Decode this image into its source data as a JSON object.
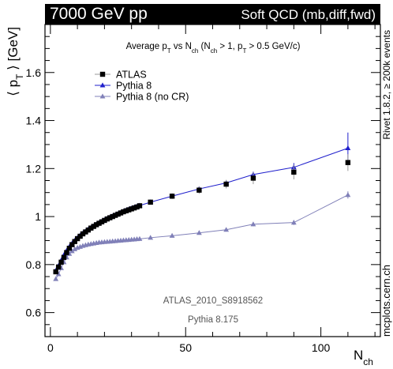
{
  "header": {
    "left_title": "7000 GeV pp",
    "right_title": "Soft QCD (mb,diff,fwd)"
  },
  "side": {
    "rivet_label": "Rivet 1.8.2,  ≥ 200k events",
    "site_label": "mcplots.cern.ch"
  },
  "annotations": {
    "analysis_id": "ATLAS_2010_S8918562",
    "generator": "Pythia 8.175"
  },
  "chart_data": {
    "type": "scatter",
    "title": "Average p_T vs N_ch (N_ch > 1, p_T > 0.5 GeV/c)",
    "xlabel": "N_ch",
    "ylabel": "⟨ p_T ⟩ [GeV]",
    "xlim": [
      -2,
      122
    ],
    "ylim": [
      0.5,
      1.8
    ],
    "x_ticks": [
      0,
      50,
      100
    ],
    "y_ticks": [
      0.6,
      0.8,
      1.0,
      1.2,
      1.4,
      1.6
    ],
    "y_tick_labels": [
      "0.6",
      "0.8",
      "1",
      "1.2",
      "1.4",
      "1.6"
    ],
    "grid": false,
    "legend_position": "top-left",
    "series": [
      {
        "name": "ATLAS",
        "color": "#000000",
        "marker": "square",
        "x": [
          2,
          3,
          4,
          5,
          6,
          7,
          8,
          9,
          10,
          11,
          12,
          13,
          14,
          15,
          16,
          17,
          18,
          19,
          20,
          21,
          22,
          23,
          24,
          25,
          26,
          27,
          28,
          29,
          30,
          31,
          32,
          33,
          37,
          45,
          55,
          65,
          75,
          90,
          110
        ],
        "y": [
          0.77,
          0.79,
          0.81,
          0.83,
          0.85,
          0.868,
          0.883,
          0.896,
          0.908,
          0.918,
          0.928,
          0.936,
          0.944,
          0.952,
          0.959,
          0.966,
          0.972,
          0.978,
          0.984,
          0.99,
          0.995,
          1.0,
          1.005,
          1.01,
          1.015,
          1.02,
          1.024,
          1.028,
          1.032,
          1.036,
          1.04,
          1.045,
          1.06,
          1.085,
          1.11,
          1.135,
          1.16,
          1.185,
          1.225
        ],
        "yerr": [
          0.004,
          0.004,
          0.004,
          0.004,
          0.004,
          0.004,
          0.004,
          0.004,
          0.004,
          0.004,
          0.004,
          0.004,
          0.004,
          0.004,
          0.004,
          0.004,
          0.004,
          0.004,
          0.004,
          0.004,
          0.004,
          0.004,
          0.005,
          0.005,
          0.005,
          0.005,
          0.005,
          0.005,
          0.005,
          0.006,
          0.006,
          0.006,
          0.008,
          0.012,
          0.015,
          0.018,
          0.025,
          0.03,
          0.035
        ]
      },
      {
        "name": "Pythia 8",
        "color": "#1f1fcc",
        "marker": "triangle",
        "x": [
          2,
          3,
          4,
          5,
          6,
          7,
          8,
          9,
          10,
          11,
          12,
          13,
          14,
          15,
          16,
          17,
          18,
          19,
          20,
          21,
          22,
          23,
          24,
          25,
          26,
          27,
          28,
          29,
          30,
          31,
          32,
          33,
          37,
          45,
          55,
          65,
          75,
          90,
          110
        ],
        "y": [
          0.775,
          0.795,
          0.818,
          0.84,
          0.858,
          0.874,
          0.888,
          0.9,
          0.911,
          0.921,
          0.93,
          0.938,
          0.946,
          0.953,
          0.96,
          0.967,
          0.973,
          0.979,
          0.985,
          0.991,
          0.996,
          1.001,
          1.006,
          1.011,
          1.016,
          1.021,
          1.026,
          1.03,
          1.034,
          1.038,
          1.042,
          1.046,
          1.06,
          1.085,
          1.115,
          1.14,
          1.175,
          1.205,
          1.285
        ],
        "yerr": [
          0.003,
          0.003,
          0.003,
          0.003,
          0.003,
          0.003,
          0.003,
          0.003,
          0.003,
          0.003,
          0.003,
          0.003,
          0.003,
          0.003,
          0.003,
          0.003,
          0.003,
          0.003,
          0.003,
          0.003,
          0.003,
          0.003,
          0.003,
          0.003,
          0.003,
          0.003,
          0.003,
          0.003,
          0.004,
          0.004,
          0.004,
          0.004,
          0.005,
          0.006,
          0.008,
          0.01,
          0.012,
          0.018,
          0.065
        ]
      },
      {
        "name": "Pythia 8 (no CR)",
        "color": "#8080b8",
        "marker": "triangle",
        "x": [
          2,
          3,
          4,
          5,
          6,
          7,
          8,
          9,
          10,
          11,
          12,
          13,
          14,
          15,
          16,
          17,
          18,
          19,
          20,
          21,
          22,
          23,
          24,
          25,
          26,
          27,
          28,
          29,
          30,
          31,
          32,
          33,
          37,
          45,
          55,
          65,
          75,
          90,
          110
        ],
        "y": [
          0.74,
          0.76,
          0.785,
          0.81,
          0.83,
          0.845,
          0.856,
          0.864,
          0.87,
          0.874,
          0.878,
          0.881,
          0.884,
          0.886,
          0.888,
          0.89,
          0.892,
          0.893,
          0.894,
          0.895,
          0.896,
          0.897,
          0.898,
          0.899,
          0.9,
          0.901,
          0.902,
          0.903,
          0.904,
          0.905,
          0.906,
          0.907,
          0.912,
          0.92,
          0.932,
          0.945,
          0.968,
          0.975,
          1.09
        ],
        "yerr": [
          0.003,
          0.003,
          0.003,
          0.003,
          0.003,
          0.003,
          0.003,
          0.003,
          0.003,
          0.003,
          0.003,
          0.003,
          0.003,
          0.003,
          0.003,
          0.003,
          0.003,
          0.003,
          0.003,
          0.003,
          0.003,
          0.003,
          0.003,
          0.003,
          0.003,
          0.003,
          0.003,
          0.003,
          0.003,
          0.003,
          0.003,
          0.003,
          0.004,
          0.005,
          0.006,
          0.007,
          0.008,
          0.01,
          0.015
        ]
      }
    ]
  }
}
